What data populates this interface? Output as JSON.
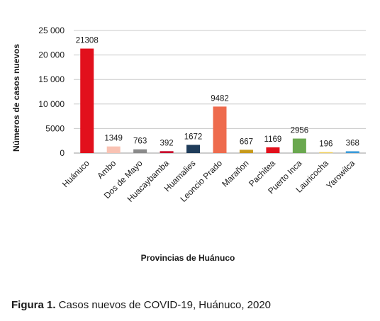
{
  "chart_data": {
    "type": "bar",
    "ylabel": "Números de casos nuevos",
    "xlabel": "Provincias de Huánuco",
    "ylim": [
      0,
      25000
    ],
    "yticks": [
      0,
      5000,
      10000,
      15000,
      20000,
      25000
    ],
    "ytick_labels": [
      "0",
      "5000",
      "10 000",
      "15 000",
      "20 000",
      "25 000"
    ],
    "grid": true,
    "categories": [
      "Huánuco",
      "Ambo",
      "Dos de Mayo",
      "Huacaybamba",
      "Huamalies",
      "Leoncio Prado",
      "Marañon",
      "Pachitea",
      "Puerto Inca",
      "Lauricocha",
      "Yarowilca"
    ],
    "values": [
      21308,
      1349,
      763,
      392,
      1672,
      9482,
      667,
      1169,
      2956,
      196,
      368
    ],
    "colors": [
      "#e2101c",
      "#f9c2b3",
      "#8a8a8a",
      "#c8102e",
      "#1f3c5a",
      "#ee6b4d",
      "#c79a1b",
      "#e2101c",
      "#6aa84f",
      "#f0d060",
      "#3a9ad9"
    ]
  },
  "caption": {
    "label": "Figura 1.",
    "text": " Casos nuevos de COVID-19, Huánuco, 2020"
  }
}
